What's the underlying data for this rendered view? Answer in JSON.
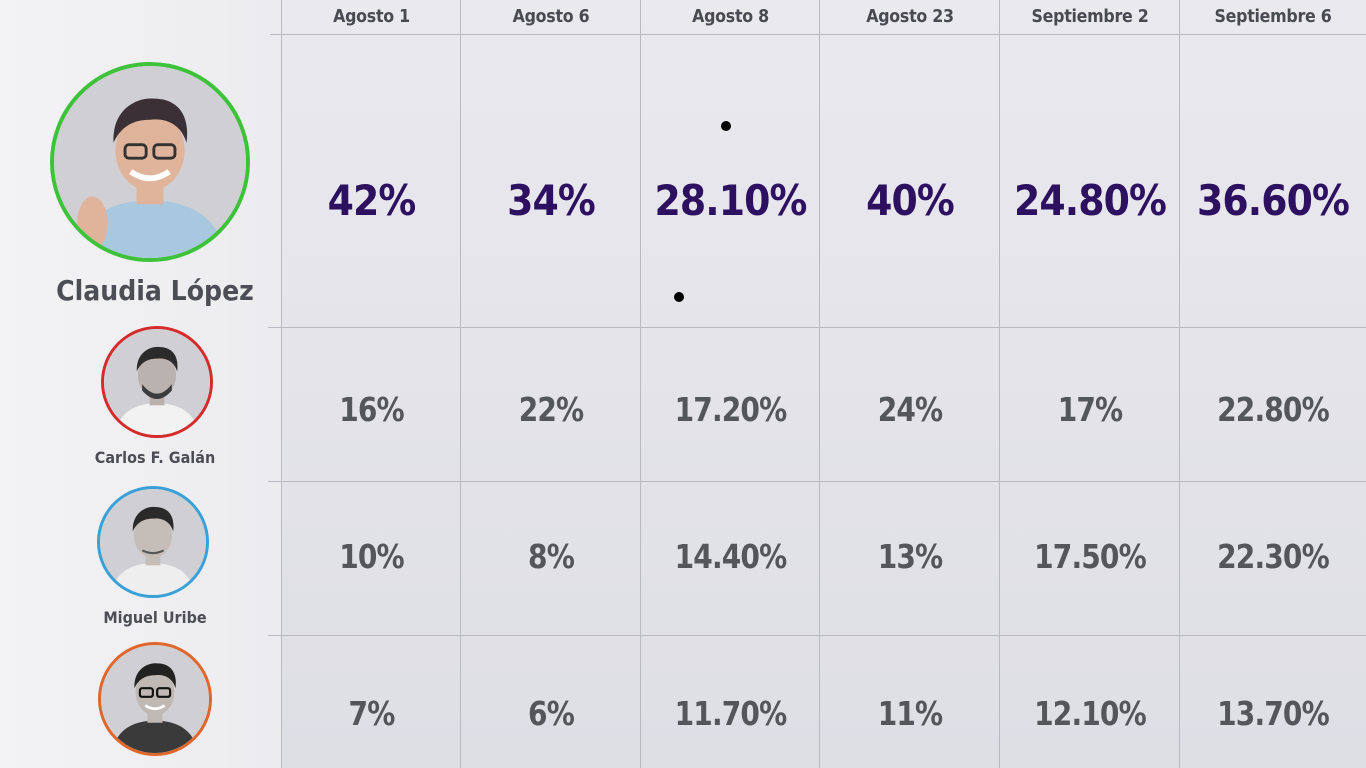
{
  "chart_data": {
    "type": "table",
    "columns": [
      "Agosto 1",
      "Agosto 6",
      "Agosto 8",
      "Agosto 23",
      "Septiembre 2",
      "Septiembre 6"
    ],
    "rows": [
      {
        "name": "Claudia López",
        "ring_color": "#3ec23a",
        "values": [
          "42%",
          "34%",
          "28.10%",
          "40%",
          "24.80%",
          "36.60%"
        ]
      },
      {
        "name": "Carlos F. Galán",
        "ring_color": "#d62b2b",
        "values": [
          "16%",
          "22%",
          "17.20%",
          "24%",
          "17%",
          "22.80%"
        ]
      },
      {
        "name": "Miguel Uribe",
        "ring_color": "#3aa0d8",
        "values": [
          "10%",
          "8%",
          "14.40%",
          "13%",
          "17.50%",
          "22.30%"
        ]
      },
      {
        "name": "",
        "ring_color": "#e0662a",
        "values": [
          "7%",
          "6%",
          "11.70%",
          "11%",
          "12.10%",
          "13.70%"
        ]
      }
    ]
  },
  "colors": {
    "lead_value": "#2d1060",
    "other_value": "#55555c",
    "header_text": "#4a4a52",
    "grid_line": "#b9b9c2"
  }
}
